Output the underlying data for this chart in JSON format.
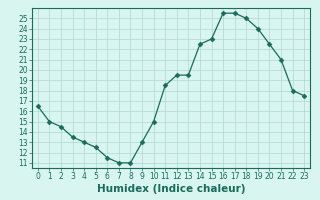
{
  "x": [
    0,
    1,
    2,
    3,
    4,
    5,
    6,
    7,
    8,
    9,
    10,
    11,
    12,
    13,
    14,
    15,
    16,
    17,
    18,
    19,
    20,
    21,
    22,
    23
  ],
  "y": [
    16.5,
    15.0,
    14.5,
    13.5,
    13.0,
    12.5,
    11.5,
    11.0,
    11.0,
    13.0,
    15.0,
    18.5,
    19.5,
    19.5,
    22.5,
    23.0,
    25.5,
    25.5,
    25.0,
    24.0,
    22.5,
    21.0,
    18.0,
    17.5
  ],
  "line_color": "#1a6b5a",
  "marker": "D",
  "marker_size": 2.5,
  "bg_color": "#d8f5f0",
  "grid_color": "#b0d8d0",
  "xlabel": "Humidex (Indice chaleur)",
  "xlim": [
    -0.5,
    23.5
  ],
  "ylim": [
    10.5,
    26.0
  ],
  "yticks": [
    11,
    12,
    13,
    14,
    15,
    16,
    17,
    18,
    19,
    20,
    21,
    22,
    23,
    24,
    25
  ],
  "xticks": [
    0,
    1,
    2,
    3,
    4,
    5,
    6,
    7,
    8,
    9,
    10,
    11,
    12,
    13,
    14,
    15,
    16,
    17,
    18,
    19,
    20,
    21,
    22,
    23
  ],
  "tick_label_fontsize": 5.5,
  "xlabel_fontsize": 7.5,
  "tick_color": "#1a6b5a",
  "spine_color": "#1a6b5a"
}
